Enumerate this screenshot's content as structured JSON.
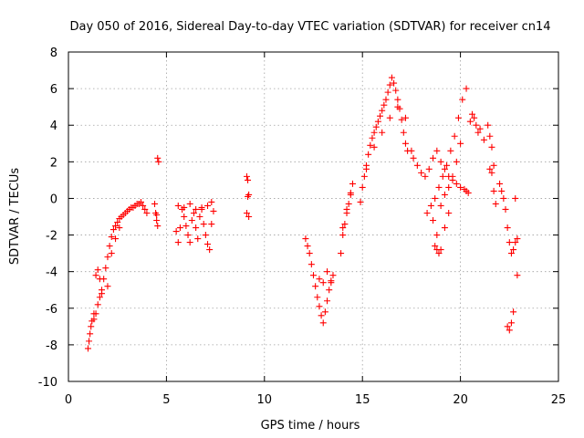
{
  "chart_data": {
    "type": "scatter",
    "title": "Day 050 of 2016, Sidereal Day-to-day VTEC variation (SDTVAR) for receiver cn14",
    "xlabel": "GPS time / hours",
    "ylabel": "SDTVAR / TECUs",
    "xlim": [
      0,
      25
    ],
    "ylim": [
      -10,
      8
    ],
    "xticks": [
      "0",
      "5",
      "10",
      "15",
      "20",
      "25"
    ],
    "yticks": [
      "-10",
      "-8",
      "-6",
      "-4",
      "-2",
      "0",
      "2",
      "4",
      "6",
      "8"
    ],
    "grid": true,
    "marker": "+",
    "color": "#ff0000",
    "series": [
      {
        "name": "SDTVAR",
        "x": [
          1.0,
          1.05,
          1.1,
          1.15,
          1.2,
          1.3,
          1.4,
          1.5,
          1.6,
          1.7,
          1.8,
          1.9,
          2.0,
          2.1,
          2.2,
          2.3,
          2.4,
          2.5,
          2.6,
          2.7,
          2.8,
          2.9,
          3.0,
          3.1,
          3.2,
          3.3,
          3.4,
          3.5,
          3.6,
          3.7,
          3.8,
          3.9,
          4.0,
          1.3,
          1.4,
          1.5,
          1.6,
          1.7,
          2.0,
          2.2,
          2.4,
          2.6,
          4.4,
          4.45,
          4.5,
          4.55,
          4.6,
          4.5,
          4.55,
          5.5,
          5.6,
          5.7,
          5.8,
          5.9,
          6.0,
          6.1,
          6.2,
          6.3,
          6.4,
          6.5,
          6.6,
          6.7,
          6.8,
          6.9,
          7.0,
          7.1,
          7.2,
          7.3,
          7.4,
          5.6,
          5.9,
          6.2,
          6.5,
          6.8,
          7.1,
          7.3,
          9.1,
          9.15,
          9.2,
          9.1,
          9.2,
          9.15,
          12.1,
          12.2,
          12.3,
          12.4,
          12.5,
          12.6,
          12.7,
          12.8,
          12.9,
          13.0,
          13.1,
          13.2,
          13.3,
          13.4,
          13.5,
          12.8,
          13.0,
          13.2,
          13.4,
          13.9,
          14.0,
          14.1,
          14.2,
          14.3,
          14.4,
          14.5,
          14.0,
          14.2,
          14.4,
          14.9,
          15.0,
          15.1,
          15.2,
          15.3,
          15.4,
          15.5,
          15.6,
          15.7,
          15.8,
          15.9,
          16.0,
          16.1,
          16.2,
          16.3,
          16.4,
          16.5,
          16.6,
          16.7,
          16.8,
          16.9,
          17.0,
          17.1,
          17.2,
          17.3,
          15.2,
          15.6,
          16.0,
          16.4,
          16.8,
          17.2,
          17.5,
          17.6,
          17.8,
          18.0,
          18.2,
          18.4,
          18.6,
          18.8,
          19.0,
          19.2,
          19.4,
          19.6,
          19.8,
          20.0,
          20.2,
          20.3,
          20.4,
          18.3,
          18.5,
          18.7,
          18.9,
          19.1,
          19.3,
          19.5,
          19.7,
          19.9,
          20.1,
          20.3,
          18.7,
          18.8,
          18.9,
          19.0,
          19.2,
          19.4,
          19.6,
          19.8,
          20.0,
          18.6,
          18.8,
          19.0,
          19.2,
          19.4,
          20.5,
          20.6,
          20.7,
          20.8,
          20.9,
          21.0,
          21.2,
          21.4,
          21.5,
          21.6,
          21.7,
          21.5,
          21.6,
          21.7,
          21.8,
          22.0,
          22.1,
          22.2,
          22.3,
          22.4,
          22.5,
          22.6,
          22.7,
          22.8,
          22.9,
          22.4,
          22.5,
          22.6,
          22.7,
          22.9,
          22.8
        ],
        "y": [
          -8.2,
          -7.8,
          -7.4,
          -7.0,
          -6.7,
          -6.6,
          -6.3,
          -5.8,
          -5.4,
          -5.0,
          -4.4,
          -3.8,
          -3.2,
          -2.6,
          -2.1,
          -1.7,
          -1.5,
          -1.3,
          -1.1,
          -1.0,
          -0.9,
          -0.8,
          -0.7,
          -0.6,
          -0.5,
          -0.5,
          -0.4,
          -0.3,
          -0.3,
          -0.2,
          -0.4,
          -0.6,
          -0.8,
          -6.3,
          -4.2,
          -3.9,
          -4.4,
          -5.2,
          -4.8,
          -3.0,
          -2.2,
          -1.6,
          -0.3,
          -0.8,
          -1.2,
          2.2,
          2.0,
          -0.9,
          -1.5,
          -1.8,
          -2.4,
          -1.6,
          -0.6,
          -1.0,
          -1.5,
          -2.0,
          -2.4,
          -1.2,
          -0.8,
          -1.6,
          -2.2,
          -1.0,
          -0.6,
          -1.4,
          -2.0,
          -2.5,
          -2.8,
          -1.4,
          -0.7,
          -0.4,
          -0.5,
          -0.3,
          -0.6,
          -0.5,
          -0.4,
          -0.2,
          1.2,
          1.0,
          0.2,
          -0.8,
          -1.0,
          0.1,
          -2.2,
          -2.6,
          -3.0,
          -3.6,
          -4.2,
          -4.8,
          -5.4,
          -5.9,
          -6.4,
          -6.8,
          -6.2,
          -5.6,
          -5.0,
          -4.6,
          -4.2,
          -4.4,
          -4.6,
          -4.0,
          -4.5,
          -3.0,
          -2.0,
          -1.4,
          -0.8,
          -0.3,
          0.2,
          0.8,
          -1.6,
          -0.6,
          0.3,
          -0.2,
          0.6,
          1.2,
          1.8,
          2.4,
          2.9,
          3.3,
          3.6,
          3.9,
          4.2,
          4.5,
          4.8,
          5.1,
          5.4,
          5.8,
          6.2,
          6.6,
          6.3,
          5.9,
          5.4,
          4.9,
          4.3,
          3.6,
          3.0,
          2.6,
          1.6,
          2.8,
          3.6,
          4.4,
          5.0,
          4.4,
          2.6,
          2.2,
          1.8,
          1.4,
          1.2,
          1.6,
          2.2,
          2.6,
          2.0,
          1.6,
          1.2,
          1.0,
          0.8,
          0.6,
          0.5,
          0.4,
          0.3,
          -0.8,
          -0.4,
          0.0,
          0.6,
          1.2,
          1.8,
          2.6,
          3.4,
          4.4,
          5.4,
          6.0,
          -2.6,
          -2.8,
          -3.0,
          -0.4,
          0.2,
          0.6,
          1.2,
          2.0,
          3.0,
          -1.2,
          -2.0,
          -2.8,
          -1.6,
          -0.8,
          4.2,
          4.6,
          4.4,
          4.0,
          3.6,
          3.8,
          3.2,
          4.0,
          3.4,
          2.8,
          1.8,
          1.6,
          1.4,
          0.4,
          -0.3,
          0.8,
          0.4,
          0.0,
          -0.6,
          -1.6,
          -2.4,
          -3.0,
          -2.8,
          -2.4,
          -2.2,
          -7.0,
          -7.2,
          -6.8,
          -6.2,
          -4.2,
          0.0
        ]
      }
    ]
  }
}
